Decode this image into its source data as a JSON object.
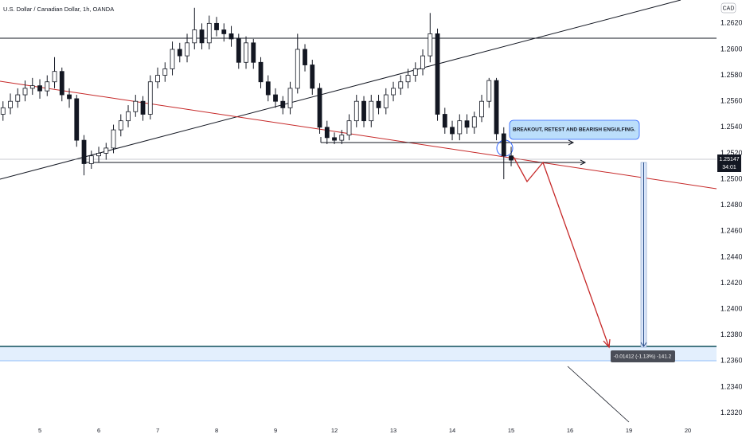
{
  "chart_data": {
    "type": "candlestick",
    "title": "U.S. Dollar / Canadian Dollar, 1h, OANDA",
    "currency": "CAD",
    "x": [
      -0.625,
      -0.5,
      -0.375,
      -0.25,
      -0.125,
      0,
      0.125,
      0.25,
      0.375,
      0.5,
      0.625,
      0.75,
      0.875,
      1,
      1.125,
      1.25,
      1.375,
      1.5,
      1.625,
      1.75,
      1.875,
      2,
      2.125,
      2.25,
      2.375,
      2.5,
      2.625,
      2.75,
      2.875,
      3,
      3.125,
      3.25,
      3.375,
      3.5,
      3.625,
      3.75,
      3.875,
      4,
      4.125,
      4.25,
      4.375,
      4.5,
      4.625,
      4.75,
      4.875,
      5,
      5.125,
      5.25,
      5.375,
      5.5,
      5.625,
      5.75,
      5.875,
      6,
      6.125,
      6.25,
      6.375,
      6.5,
      6.625,
      6.75,
      6.875,
      7,
      7.125,
      7.25,
      7.375,
      7.5,
      7.625,
      7.75,
      7.875,
      8
    ],
    "open": [
      1.255,
      1.2555,
      1.256,
      1.2565,
      1.257,
      1.2572,
      1.2568,
      1.2575,
      1.2583,
      1.2565,
      1.2562,
      1.253,
      1.2512,
      1.2518,
      1.252,
      1.2524,
      1.2538,
      1.2545,
      1.2552,
      1.256,
      1.255,
      1.2575,
      1.258,
      1.2585,
      1.26,
      1.2595,
      1.2605,
      1.2615,
      1.2605,
      1.262,
      1.2615,
      1.2612,
      1.2608,
      1.259,
      1.2605,
      1.259,
      1.2575,
      1.2565,
      1.256,
      1.2555,
      1.257,
      1.26,
      1.2588,
      1.257,
      1.254,
      1.2532,
      1.253,
      1.2534,
      1.2545,
      1.256,
      1.2545,
      1.256,
      1.2555,
      1.2565,
      1.257,
      1.2575,
      1.258,
      1.2585,
      1.2595,
      1.2612,
      1.255,
      1.254,
      1.2535,
      1.2545,
      1.254,
      1.2548,
      1.256,
      1.2576,
      1.2535,
      1.2518
    ],
    "high": [
      1.256,
      1.2566,
      1.257,
      1.2576,
      1.2578,
      1.2577,
      1.258,
      1.2594,
      1.2586,
      1.257,
      1.2565,
      1.2534,
      1.2522,
      1.2525,
      1.2528,
      1.2542,
      1.255,
      1.2557,
      1.2565,
      1.2564,
      1.258,
      1.2586,
      1.259,
      1.2606,
      1.2605,
      1.2612,
      1.2632,
      1.262,
      1.2626,
      1.2625,
      1.262,
      1.2618,
      1.2612,
      1.261,
      1.2608,
      1.2594,
      1.258,
      1.257,
      1.2564,
      1.2575,
      1.2612,
      1.2604,
      1.2592,
      1.2574,
      1.2545,
      1.2536,
      1.2538,
      1.255,
      1.2565,
      1.2564,
      1.2565,
      1.2565,
      1.257,
      1.2575,
      1.258,
      1.2585,
      1.259,
      1.26,
      1.2628,
      1.2616,
      1.2555,
      1.2545,
      1.255,
      1.255,
      1.2552,
      1.2565,
      1.2578,
      1.2578,
      1.254,
      1.2525
    ],
    "low": [
      1.2545,
      1.255,
      1.2555,
      1.256,
      1.2565,
      1.2562,
      1.2564,
      1.257,
      1.256,
      1.2555,
      1.2525,
      1.2503,
      1.2508,
      1.2513,
      1.2515,
      1.252,
      1.2533,
      1.254,
      1.2548,
      1.2545,
      1.2546,
      1.257,
      1.2575,
      1.258,
      1.259,
      1.259,
      1.26,
      1.26,
      1.26,
      1.261,
      1.2606,
      1.2602,
      1.2585,
      1.2585,
      1.2585,
      1.257,
      1.256,
      1.2555,
      1.255,
      1.255,
      1.2566,
      1.2583,
      1.2565,
      1.2535,
      1.2527,
      1.2527,
      1.2527,
      1.253,
      1.254,
      1.254,
      1.254,
      1.255,
      1.255,
      1.256,
      1.2565,
      1.257,
      1.2575,
      1.258,
      1.259,
      1.2545,
      1.2535,
      1.253,
      1.253,
      1.2535,
      1.2535,
      1.2544,
      1.2555,
      1.253,
      1.25,
      1.251
    ],
    "close": [
      1.2555,
      1.256,
      1.2565,
      1.257,
      1.2572,
      1.2568,
      1.2575,
      1.2583,
      1.2565,
      1.2562,
      1.253,
      1.2512,
      1.2518,
      1.252,
      1.2524,
      1.2538,
      1.2545,
      1.2552,
      1.256,
      1.255,
      1.2575,
      1.258,
      1.2585,
      1.26,
      1.2595,
      1.2605,
      1.2615,
      1.2605,
      1.262,
      1.2615,
      1.2612,
      1.2608,
      1.259,
      1.2605,
      1.259,
      1.2575,
      1.2565,
      1.256,
      1.2555,
      1.257,
      1.26,
      1.2588,
      1.257,
      1.254,
      1.2532,
      1.253,
      1.2534,
      1.2545,
      1.256,
      1.2545,
      1.256,
      1.2555,
      1.2565,
      1.257,
      1.2575,
      1.258,
      1.2585,
      1.2595,
      1.2612,
      1.255,
      1.254,
      1.2535,
      1.2545,
      1.254,
      1.2548,
      1.256,
      1.2576,
      1.2535,
      1.2518,
      1.25147
    ],
    "up_color": "#ffffff",
    "down_color": "#131722",
    "xlim": [
      -0.676,
      11.486
    ],
    "xticks": [
      {
        "value": 0,
        "label": "5"
      },
      {
        "value": 1,
        "label": "6"
      },
      {
        "value": 2,
        "label": "7"
      },
      {
        "value": 3,
        "label": "8"
      },
      {
        "value": 4,
        "label": "9"
      },
      {
        "value": 5,
        "label": "12"
      },
      {
        "value": 6,
        "label": "13"
      },
      {
        "value": 7,
        "label": "14"
      },
      {
        "value": 8,
        "label": "15"
      },
      {
        "value": 9,
        "label": "16"
      },
      {
        "value": 10,
        "label": "19"
      },
      {
        "value": 11,
        "label": "20"
      }
    ],
    "ylim": [
      1.2313,
      1.2638
    ],
    "yticks": [
      {
        "value": 1.232,
        "label": "1.23200"
      },
      {
        "value": 1.234,
        "label": "1.23400"
      },
      {
        "value": 1.236,
        "label": "1.23600"
      },
      {
        "value": 1.238,
        "label": "1.23800"
      },
      {
        "value": 1.24,
        "label": "1.24000"
      },
      {
        "value": 1.242,
        "label": "1.24200"
      },
      {
        "value": 1.244,
        "label": "1.24400"
      },
      {
        "value": 1.246,
        "label": "1.24600"
      },
      {
        "value": 1.248,
        "label": "1.24800"
      },
      {
        "value": 1.25,
        "label": "1.25000"
      },
      {
        "value": 1.252,
        "label": "1.25200"
      },
      {
        "value": 1.254,
        "label": "1.25400"
      },
      {
        "value": 1.256,
        "label": "1.25600"
      },
      {
        "value": 1.258,
        "label": "1.25800"
      },
      {
        "value": 1.26,
        "label": "1.26000"
      },
      {
        "value": 1.262,
        "label": "1.26200"
      }
    ],
    "grid": false,
    "annotation": "BREAKOUT, RETEST AND BEARISH ENGULFING.",
    "measure_label": "-0.01412 (-1.13%) -141.2",
    "last_price_label": "1.25147",
    "countdown": "34:01"
  }
}
